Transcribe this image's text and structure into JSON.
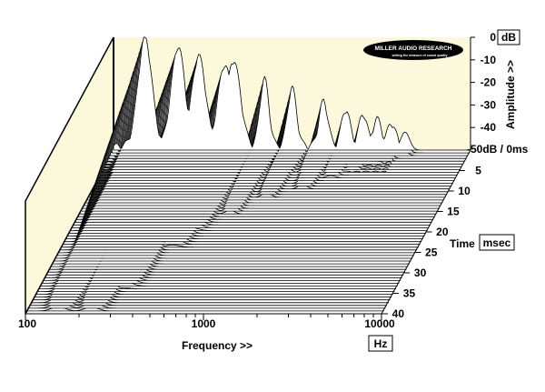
{
  "chart_data": {
    "type": "area",
    "style": "3d-waterfall",
    "x_axis": {
      "label": "Frequency >>",
      "unit": "Hz",
      "scale": "log",
      "range": [
        100,
        10000
      ],
      "ticks": [
        "100",
        "1000",
        "10000"
      ]
    },
    "z_axis": {
      "label": "Time",
      "unit": "msec",
      "range": [
        0,
        40
      ],
      "ticks": [
        "5",
        "10",
        "15",
        "20",
        "25",
        "30",
        "35",
        "40"
      ]
    },
    "y_axis": {
      "label": "Amplitude >>",
      "unit": "dB",
      "range": [
        -50,
        0
      ],
      "ticks": [
        "0",
        "-10",
        "-20",
        "-30",
        "-40"
      ],
      "bottom_tick": "-50dB / 0ms"
    },
    "slice_count": 60,
    "resonances": [
      {
        "freq_hz": 150,
        "amp_db": -2,
        "decay_ms": 40
      },
      {
        "freq_hz": 230,
        "amp_db": -6,
        "decay_ms": 40
      },
      {
        "freq_hz": 300,
        "amp_db": -10,
        "decay_ms": 34
      },
      {
        "freq_hz": 420,
        "amp_db": -14,
        "decay_ms": 24
      },
      {
        "freq_hz": 470,
        "amp_db": -12,
        "decay_ms": 20
      },
      {
        "freq_hz": 700,
        "amp_db": -20,
        "decay_ms": 16
      },
      {
        "freq_hz": 1000,
        "amp_db": -24,
        "decay_ms": 12
      },
      {
        "freq_hz": 1500,
        "amp_db": -30,
        "decay_ms": 10
      },
      {
        "freq_hz": 2000,
        "amp_db": -34,
        "decay_ms": 7
      },
      {
        "freq_hz": 2500,
        "amp_db": -36,
        "decay_ms": 5
      },
      {
        "freq_hz": 3000,
        "amp_db": -38,
        "decay_ms": 4
      },
      {
        "freq_hz": 3600,
        "amp_db": -40,
        "decay_ms": 3
      },
      {
        "freq_hz": 4300,
        "amp_db": -42,
        "decay_ms": 2
      }
    ],
    "panel_color": "#fbf8dc",
    "line_color": "#000000"
  },
  "logo": {
    "name": "MILLER AUDIO RESEARCH",
    "tagline": "setting the measure of sound quality"
  }
}
